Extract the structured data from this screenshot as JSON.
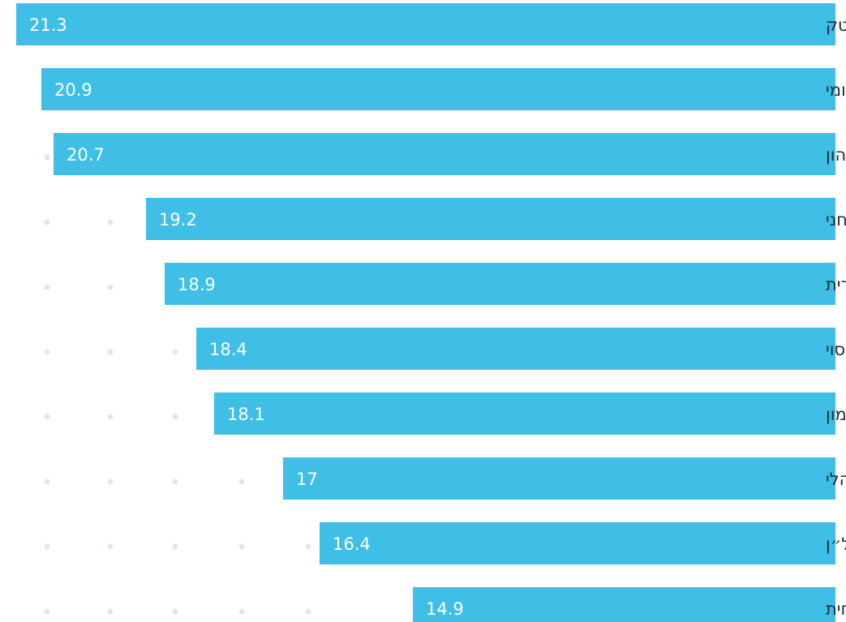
{
  "colors": {
    "bar": "#3fbfe6",
    "dot": "#e3e6e9",
    "label": "#1f2a33",
    "value": "#ffffff",
    "background": "#ffffff"
  },
  "chart_data": {
    "type": "bar",
    "orientation": "horizontal",
    "direction": "right-to-left",
    "title": "",
    "xlabel": "",
    "ylabel": "",
    "categories": [
      "הייטק",
      "מסחר בינלאומי",
      "שוק ההון",
      "קניין רוחני",
      "ליטיגציה מסחרית",
      "מיסוי",
      "בנקאות ומימון",
      "רגולציה ומשפט מנהלי",
      "נדל״ן",
      "ליטיגציה אזרחית"
    ],
    "values": [
      21.3,
      20.9,
      20.7,
      19.2,
      18.9,
      18.4,
      18.1,
      17,
      16.4,
      14.9
    ],
    "value_labels": [
      "21.3",
      "20.9",
      "20.7",
      "19.2",
      "18.9",
      "18.4",
      "18.1",
      "17",
      "16.4",
      "14.9"
    ],
    "grid": "dots"
  }
}
